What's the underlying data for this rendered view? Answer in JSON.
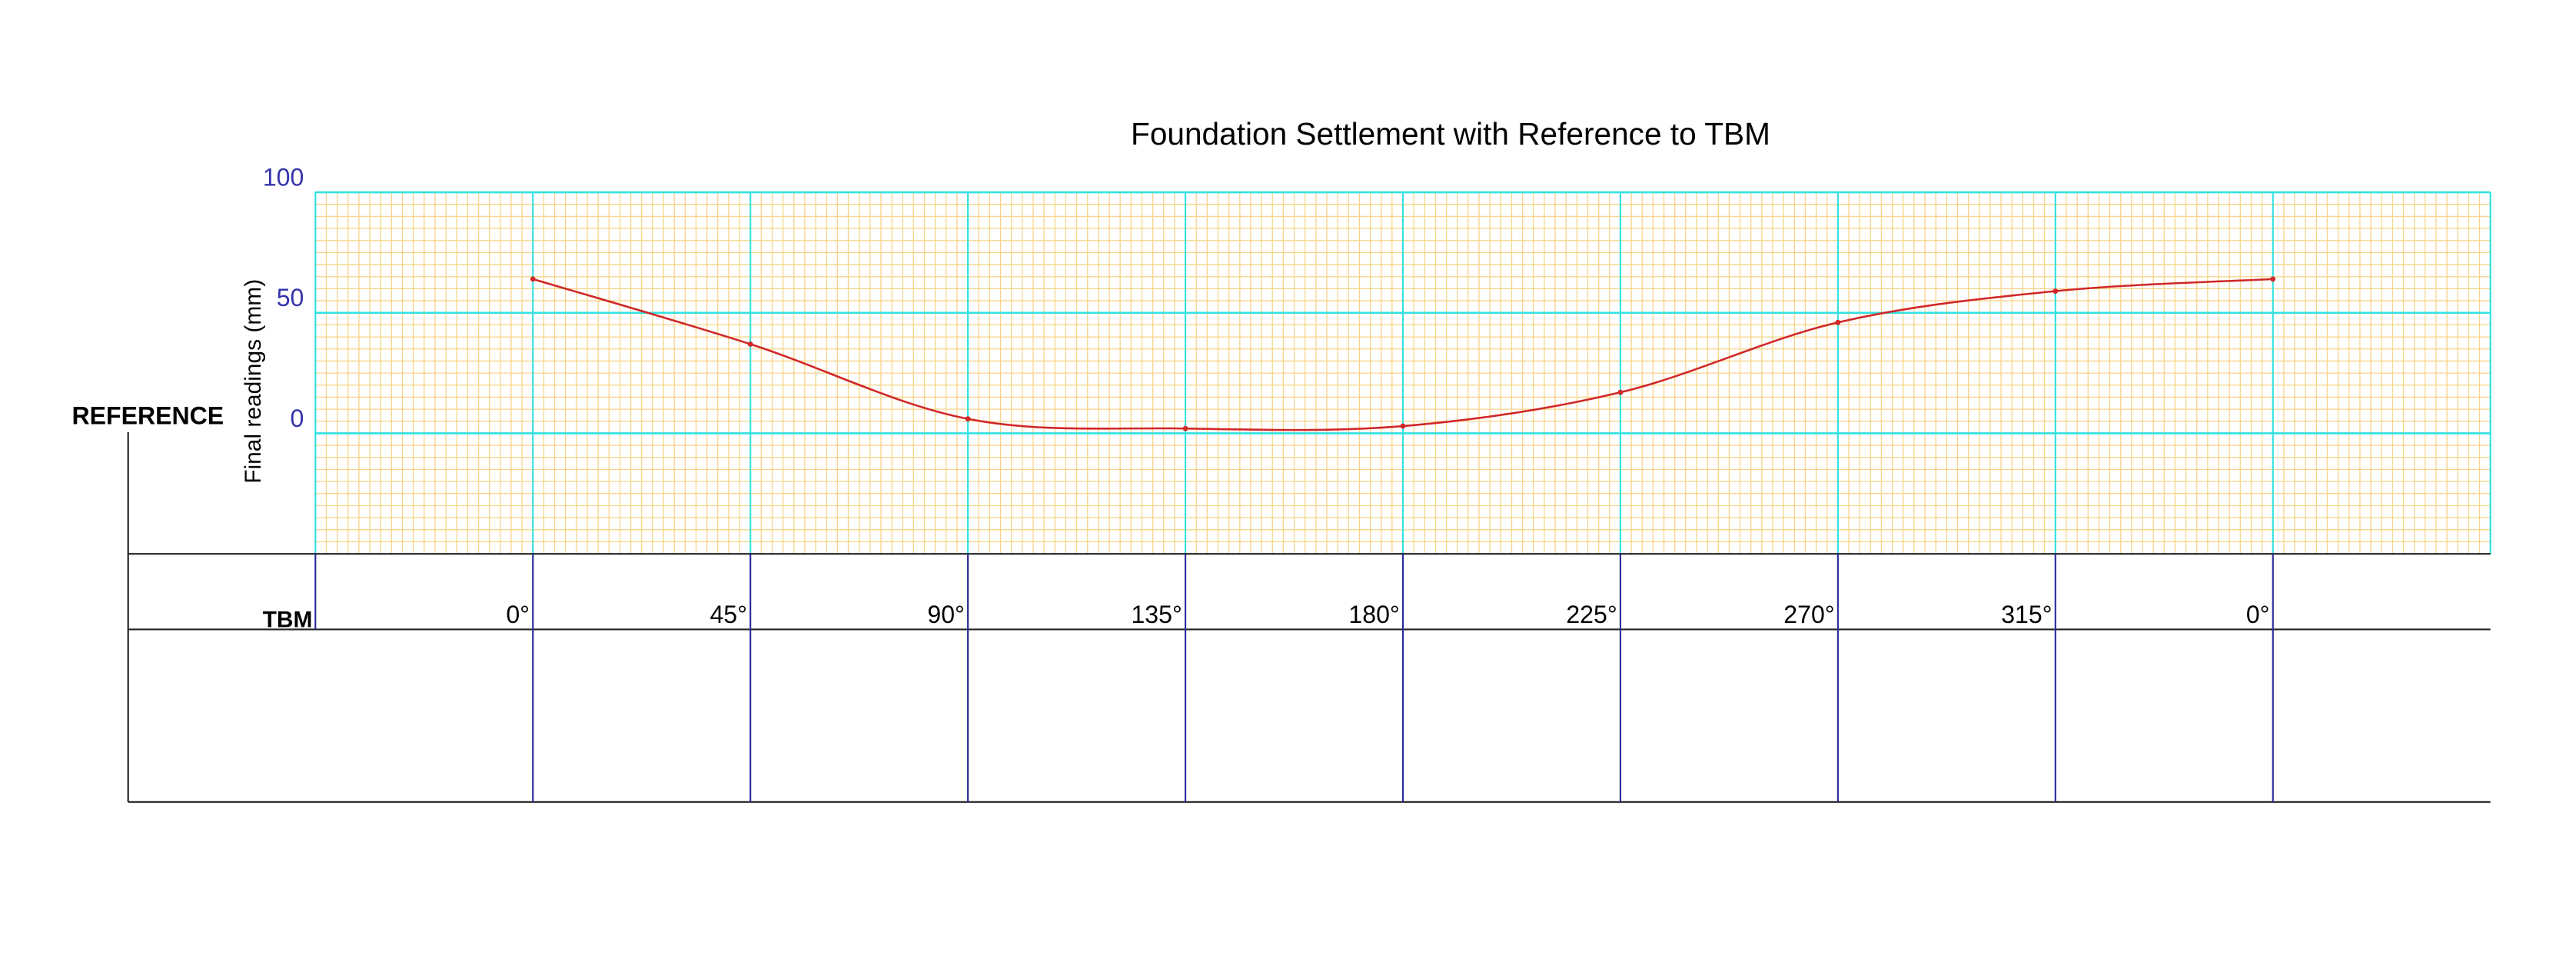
{
  "chart_data": {
    "type": "line",
    "title": "Foundation Settlement with Reference to TBM",
    "y_label": "Final readings (mm)",
    "annotations": [
      "REFERENCE",
      "TBM"
    ],
    "categories": [
      "0°",
      "45°",
      "90°",
      "135°",
      "180°",
      "225°",
      "270°",
      "315°",
      "0°"
    ],
    "series": [
      {
        "name": "Final readings",
        "color": "#d02828",
        "values": [
          64,
          37,
          6,
          2,
          3,
          17,
          46,
          59,
          64
        ]
      }
    ],
    "ylim": [
      -50,
      100
    ],
    "yticks": [
      0,
      50,
      100
    ],
    "grid": true,
    "grid_color": "#33e0e0",
    "minor_grid_color": "#f7d488",
    "tick_color": "#3333aa"
  }
}
